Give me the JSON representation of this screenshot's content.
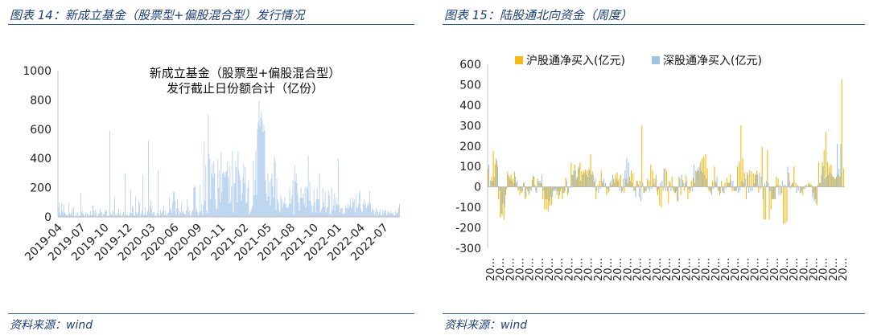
{
  "left": {
    "figure_title": "图表 14：新成立基金（股票型+偏股混合型）发行情况",
    "source": "资料来源：wind"
  },
  "right": {
    "figure_title": "图表 15：陆股通北向资金（周度）",
    "source": "资料来源：wind"
  },
  "chart_data": [
    {
      "type": "bar",
      "title": "新成立基金（股票型+偏股混合型）发行截止日份额合计（亿份）",
      "title_lines": [
        "新成立基金（股票型+偏股混合型）",
        "发行截止日份额合计（亿份）"
      ],
      "ylim": [
        0,
        1000
      ],
      "y_ticks": [
        0,
        200,
        400,
        600,
        800,
        1000
      ],
      "x_ticks": [
        "2019-04",
        "2019-07",
        "2019-10",
        "2019-12",
        "2020-03",
        "2020-06",
        "2020-09",
        "2020-11",
        "2021-02",
        "2021-05",
        "2021-08",
        "2021-10",
        "2022-01",
        "2022-04",
        "2022-07"
      ],
      "color": "#a9c8ea",
      "values": [
        62,
        100,
        28,
        12,
        95,
        40,
        25,
        82,
        30,
        20,
        8,
        15,
        5,
        95,
        20,
        15,
        25,
        55,
        10,
        65,
        5,
        5,
        20,
        8,
        32,
        5,
        10,
        8,
        165,
        30,
        40,
        20,
        10,
        5,
        30,
        15,
        25,
        8,
        20,
        5,
        40,
        10,
        15,
        80,
        45,
        12,
        50,
        30,
        5,
        5,
        20,
        25,
        55,
        35,
        30,
        5,
        20,
        15,
        45,
        35,
        45,
        5,
        5,
        10,
        588,
        25,
        15,
        20,
        45,
        8,
        140,
        15,
        15,
        5,
        28,
        55,
        12,
        30,
        8,
        10,
        20,
        35,
        5,
        300,
        20,
        10,
        15,
        5,
        10,
        28,
        185,
        25,
        75,
        65,
        8,
        10,
        140,
        30,
        15,
        30,
        110,
        90,
        5,
        20,
        45,
        290,
        10,
        20,
        65,
        15,
        15,
        40,
        520,
        30,
        75,
        110,
        55,
        20,
        35,
        35,
        5,
        10,
        12,
        28,
        320,
        15,
        10,
        50,
        25,
        30,
        45,
        80,
        10,
        40,
        15,
        5,
        25,
        30,
        130,
        50,
        60,
        30,
        100,
        170,
        170,
        110,
        20,
        60,
        120,
        60,
        15,
        40,
        30,
        95,
        30,
        40,
        25,
        20,
        15,
        45,
        120,
        70,
        30,
        45,
        5,
        15,
        35,
        50,
        200,
        205,
        215,
        40,
        60,
        30,
        10,
        35,
        220,
        40,
        90,
        15,
        80,
        520,
        110,
        350,
        45,
        25,
        700,
        430,
        400,
        120,
        300,
        360,
        270,
        380,
        300,
        120,
        50,
        60,
        390,
        200,
        320,
        100,
        440,
        170,
        300,
        310,
        290,
        270,
        310,
        320,
        380,
        270,
        90,
        350,
        100,
        210,
        450,
        30,
        230,
        230,
        380,
        340,
        100,
        450,
        320,
        280,
        250,
        110,
        160,
        270,
        360,
        230,
        340,
        90,
        100,
        200,
        250,
        20,
        35,
        40,
        60,
        80,
        380,
        150,
        250,
        450,
        150,
        600,
        650,
        790,
        620,
        680,
        720,
        660,
        580,
        630,
        590,
        250,
        160,
        110,
        300,
        140,
        240,
        80,
        260,
        300,
        210,
        130,
        420,
        380,
        50,
        260,
        120,
        100,
        50,
        30,
        150,
        120,
        60,
        100,
        90,
        130,
        90,
        60,
        70,
        60,
        90,
        200,
        90,
        120,
        150,
        250,
        20,
        350,
        240,
        300,
        230,
        160,
        100,
        40,
        130,
        200,
        130,
        130,
        160,
        90,
        200,
        60,
        210,
        190,
        420,
        110,
        240,
        110,
        80,
        30,
        80,
        190,
        100,
        30,
        120,
        200,
        120,
        120,
        300,
        30,
        50,
        60,
        200,
        100,
        70,
        170,
        30,
        60,
        70,
        180,
        150,
        20,
        20,
        200,
        50,
        80,
        160,
        40,
        130,
        90,
        80,
        400,
        80,
        30,
        60,
        60,
        60,
        20,
        20,
        30,
        80,
        60,
        60,
        90,
        60,
        80,
        130,
        70,
        60,
        130,
        100,
        120,
        30,
        150,
        70,
        60,
        90,
        160,
        180,
        60,
        40,
        30,
        90,
        120,
        80,
        90,
        60,
        80,
        80,
        100,
        180,
        90,
        30,
        60,
        50,
        40,
        20,
        30,
        60,
        10,
        40,
        20,
        30,
        50,
        10,
        10,
        50,
        20,
        40,
        40,
        50,
        10,
        20,
        40,
        30,
        20,
        40,
        30,
        20,
        30,
        10,
        10,
        40,
        20,
        30,
        30,
        60,
        90
      ]
    },
    {
      "type": "bar",
      "title": "",
      "ylim": [
        -300,
        600
      ],
      "y_ticks": [
        -300,
        -200,
        -100,
        0,
        100,
        200,
        300,
        400,
        500,
        600
      ],
      "series": [
        {
          "name": "沪股通净买入(亿元)",
          "color": "#f5b90f",
          "values": [
            90,
            0,
            50,
            175,
            110,
            130,
            -60,
            -150,
            -140,
            -160,
            -40,
            75,
            50,
            60,
            40,
            75,
            20,
            -20,
            -40,
            -30,
            20,
            -60,
            -10,
            -40,
            -10,
            35,
            50,
            -20,
            40,
            20,
            20,
            -60,
            -110,
            -110,
            -120,
            -90,
            -90,
            -20,
            -10,
            -40,
            -60,
            -20,
            -60,
            -30,
            45,
            -40,
            0,
            120,
            60,
            110,
            40,
            90,
            120,
            75,
            80,
            85,
            80,
            90,
            160,
            75,
            25,
            -60,
            10,
            30,
            80,
            20,
            5,
            -40,
            -30,
            20,
            10,
            40,
            60,
            70,
            40,
            60,
            -20,
            -30,
            40,
            20,
            50,
            80,
            65,
            -20,
            30,
            15,
            30,
            300,
            -30,
            -20,
            40,
            30,
            110,
            80,
            15,
            60,
            -40,
            -90,
            -100,
            -20,
            90,
            80,
            -80,
            20,
            50,
            -20,
            -30,
            -70,
            50,
            -40,
            35,
            -20,
            55,
            -60,
            -30,
            30,
            45,
            20,
            75,
            80,
            120,
            140,
            150,
            160,
            90,
            -20,
            -30,
            30,
            100,
            20,
            -20,
            -40,
            30,
            -30,
            20,
            45,
            20,
            60,
            -20,
            -20,
            -20,
            100,
            120,
            300,
            140,
            70,
            -60,
            60,
            80,
            75,
            65,
            60,
            80,
            -30,
            -10,
            195,
            -160,
            -160,
            180,
            -160,
            -110,
            -60,
            -60,
            50,
            40,
            10,
            -30,
            -180,
            -180,
            -170,
            70,
            -10,
            20,
            100,
            20,
            10,
            0,
            -30,
            -40,
            -10,
            10,
            20,
            20,
            10,
            -30,
            -60,
            -90,
            120,
            20,
            120,
            180,
            270,
            120,
            100,
            110,
            50,
            40,
            50,
            60,
            50,
            525,
            90
          ]
        },
        {
          "name": "深股通净买入(亿元)",
          "color": "#9dc3e6",
          "values": [
            110,
            30,
            30,
            50,
            140,
            100,
            -20,
            -130,
            -80,
            -100,
            -10,
            60,
            40,
            30,
            20,
            50,
            30,
            -10,
            -20,
            -20,
            20,
            -50,
            -20,
            -30,
            -20,
            55,
            10,
            -30,
            30,
            30,
            60,
            -20,
            -60,
            -60,
            -70,
            -50,
            -50,
            -20,
            -20,
            -20,
            -40,
            -10,
            -30,
            -20,
            30,
            -30,
            -5,
            60,
            80,
            80,
            50,
            100,
            30,
            60,
            70,
            60,
            50,
            80,
            60,
            60,
            40,
            -20,
            -30,
            -10,
            30,
            40,
            20,
            -10,
            -20,
            30,
            60,
            20,
            40,
            30,
            -20,
            -30,
            40,
            80,
            140,
            120,
            30,
            20,
            -20,
            -50,
            30,
            -50,
            -70,
            20,
            -30,
            -20,
            -10,
            -20,
            -10,
            40,
            40,
            -20,
            -10,
            20,
            30,
            90,
            -20,
            -20,
            30,
            -20,
            -10,
            -30,
            -20,
            -70,
            40,
            60,
            20,
            20,
            30,
            -10,
            -20,
            -20,
            110,
            80,
            90,
            100,
            80,
            70,
            60,
            40,
            -10,
            -20,
            -40,
            -10,
            30,
            50,
            -20,
            -30,
            -20,
            -30,
            -10,
            20,
            20,
            30,
            30,
            -20,
            -20,
            -30,
            -20,
            30,
            20,
            40,
            70,
            -30,
            -20,
            -20,
            20,
            60,
            60,
            70,
            50,
            -60,
            20,
            30,
            20,
            -20,
            -60,
            -60,
            -60,
            10,
            -40,
            -40,
            30,
            10,
            10,
            100,
            30,
            10,
            20,
            0,
            -30,
            -20,
            -30,
            -20,
            -10,
            10,
            0,
            10,
            10,
            -50,
            -70,
            -80,
            10,
            20,
            60,
            100,
            40,
            50,
            60,
            70,
            60,
            50,
            40,
            210,
            90,
            210
          ]
        }
      ],
      "x_ticks": [
        "20...",
        "20...",
        "20...",
        "20...",
        "20...",
        "20...",
        "20...",
        "20...",
        "20...",
        "20...",
        "20...",
        "20...",
        "20...",
        "20...",
        "20...",
        "20...",
        "20...",
        "20...",
        "20...",
        "20...",
        "20...",
        "20...",
        "20...",
        "20...",
        "20...",
        "20...",
        "20...",
        "20...",
        "20...",
        "20...",
        "20...",
        "20...",
        "20...",
        "20...",
        "20...",
        "20...",
        "20..."
      ]
    }
  ]
}
